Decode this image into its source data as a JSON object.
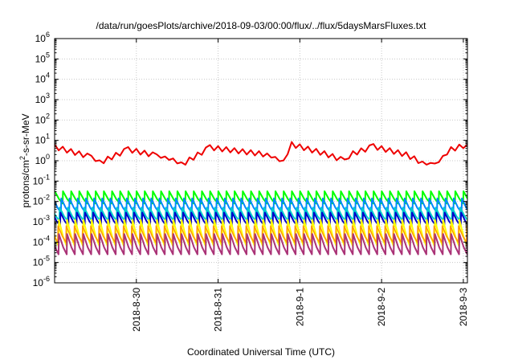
{
  "chart_data": {
    "type": "line",
    "title": "/data/run/goesPlots/archive/2018-09-03/00:00/flux/../flux/5daysMarsFluxes.txt",
    "xlabel": "Coordinated Universal Time (UTC)",
    "ylabel": "protons/cm2-s-sr-MeV",
    "yscale": "log",
    "ylim": [
      1e-06,
      1000000.0
    ],
    "xlim": [
      0,
      5.05
    ],
    "grid": true,
    "y_ticks": [
      {
        "exp": "-6",
        "value": 1e-06
      },
      {
        "exp": "-5",
        "value": 1e-05
      },
      {
        "exp": "-4",
        "value": 0.0001
      },
      {
        "exp": "-3",
        "value": 0.001
      },
      {
        "exp": "-2",
        "value": 0.01
      },
      {
        "exp": "-1",
        "value": 0.1
      },
      {
        "exp": "0",
        "value": 1
      },
      {
        "exp": "1",
        "value": 10
      },
      {
        "exp": "2",
        "value": 100
      },
      {
        "exp": "3",
        "value": 1000
      },
      {
        "exp": "4",
        "value": 10000
      },
      {
        "exp": "5",
        "value": 100000
      },
      {
        "exp": "6",
        "value": 1000000
      }
    ],
    "y_tick_base": "10",
    "x_ticks": [
      {
        "label": "2018-8-30",
        "x": 1
      },
      {
        "label": "2018-8-31",
        "x": 2
      },
      {
        "label": "2018-9-1",
        "x": 3
      },
      {
        "label": "2018-9-2",
        "x": 4
      },
      {
        "label": "2018-9-3",
        "x": 5
      }
    ],
    "series": [
      {
        "color": "#ee0000",
        "width": 2,
        "period": 0.25,
        "phase": 0.0,
        "lo_exp": 0.05,
        "hi_exp": 0.62,
        "segments": [
          [
            0,
            0.68
          ],
          [
            0.45,
            0.18
          ],
          [
            0.55,
            -0.1
          ],
          [
            0.9,
            0.55
          ],
          [
            1.25,
            0.25
          ],
          [
            1.45,
            0.05
          ],
          [
            1.55,
            -0.2
          ],
          [
            1.9,
            0.65
          ],
          [
            2.6,
            0.3
          ],
          [
            2.8,
            -0.05
          ],
          [
            2.9,
            0.8
          ],
          [
            3.3,
            0.35
          ],
          [
            3.55,
            0.0
          ],
          [
            3.65,
            0.35
          ],
          [
            3.9,
            0.7
          ],
          [
            4.3,
            0.3
          ],
          [
            4.5,
            -0.1
          ],
          [
            4.65,
            -0.2
          ],
          [
            4.85,
            0.55
          ],
          [
            5.05,
            0.8
          ]
        ]
      },
      {
        "color": "#00ff00",
        "width": 2,
        "period": 0.1,
        "phase": 0.0,
        "lo_exp": -2.1,
        "hi_exp": -1.5,
        "segments": []
      },
      {
        "color": "#0088ff",
        "width": 2,
        "period": 0.1,
        "phase": 0.02,
        "lo_exp": -2.55,
        "hi_exp": -1.85,
        "segments": []
      },
      {
        "color": "#00cccc",
        "width": 2,
        "period": 0.1,
        "phase": 0.04,
        "lo_exp": -2.95,
        "hi_exp": -2.3,
        "segments": []
      },
      {
        "color": "#0000cc",
        "width": 2,
        "period": 0.1,
        "phase": 0.03,
        "lo_exp": -3.2,
        "hi_exp": -2.55,
        "segments": []
      },
      {
        "color": "#ffff00",
        "width": 2,
        "period": 0.1,
        "phase": 0.05,
        "lo_exp": -4.2,
        "hi_exp": -2.9,
        "segments": []
      },
      {
        "color": "#ff9900",
        "width": 1.5,
        "period": 0.1,
        "phase": 0.06,
        "lo_exp": -4.0,
        "hi_exp": -3.2,
        "segments": []
      },
      {
        "color": "#aa3377",
        "width": 2,
        "period": 0.1,
        "phase": 0.05,
        "lo_exp": -4.6,
        "hi_exp": -3.6,
        "segments": []
      }
    ]
  }
}
